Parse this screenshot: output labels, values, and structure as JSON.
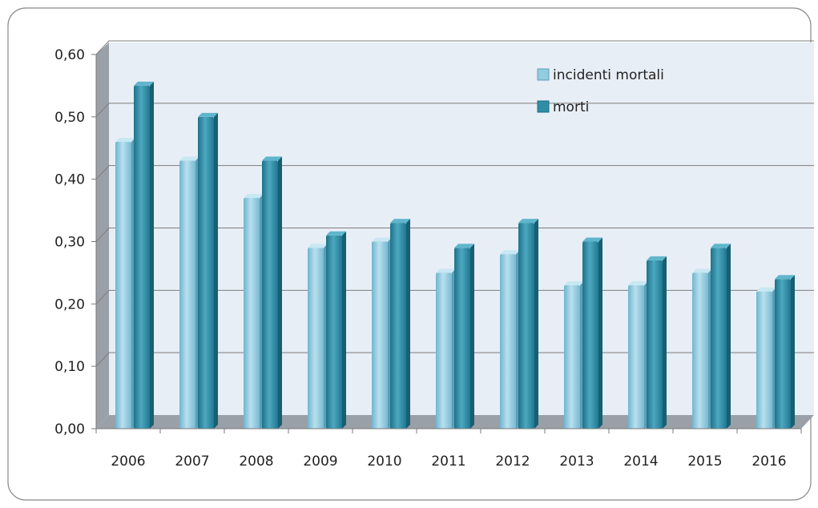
{
  "chart_data": {
    "type": "bar",
    "title": "",
    "xlabel": "",
    "ylabel": "",
    "categories": [
      "2006",
      "2007",
      "2008",
      "2009",
      "2010",
      "2011",
      "2012",
      "2013",
      "2014",
      "2015",
      "2016"
    ],
    "series": [
      {
        "name": "incidenti mortali",
        "color": "#93cbe0",
        "values": [
          0.46,
          0.43,
          0.37,
          0.29,
          0.3,
          0.25,
          0.28,
          0.23,
          0.23,
          0.25,
          0.22
        ]
      },
      {
        "name": "morti",
        "color": "#2f8ea6",
        "values": [
          0.55,
          0.5,
          0.43,
          0.31,
          0.33,
          0.29,
          0.33,
          0.3,
          0.27,
          0.29,
          0.24
        ]
      }
    ],
    "ylim": [
      0,
      0.6
    ],
    "yticks": [
      "0,00",
      "0,10",
      "0,20",
      "0,30",
      "0,40",
      "0,50",
      "0,60"
    ],
    "grid": true,
    "legend_position": "top-right",
    "plot_background": "#e8eef6"
  }
}
